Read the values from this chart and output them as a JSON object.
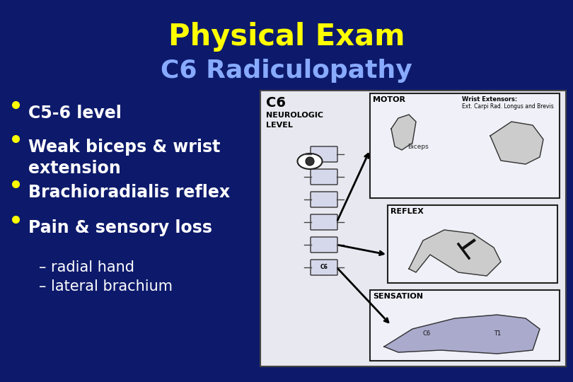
{
  "title_line1": "Physical Exam",
  "title_line2": "C6 Radiculopathy",
  "title_color": "#FFFF00",
  "subtitle_color": "#88AAFF",
  "background_color": "#0D1A6B",
  "bullet_color": "#FFFF00",
  "bullet_text_color": "#FFFFFF",
  "sub_bullet_color": "#FFFFFF",
  "bullets": [
    "C5-6 level",
    "Weak biceps & wrist\nextension",
    "Brachioradialis reflex",
    "Pain & sensory loss"
  ],
  "sub_bullets": [
    "– radial hand",
    "– lateral brachium"
  ],
  "image_bg_color": "#E8E8F0",
  "image_border_color": "#444444",
  "diagram_line_color": "#111111",
  "title_fontsize": 30,
  "subtitle_fontsize": 26,
  "bullet_fontsize": 17,
  "sub_bullet_fontsize": 15
}
